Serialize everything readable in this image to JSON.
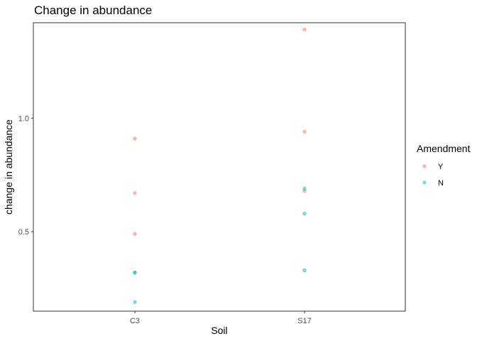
{
  "chart_data": {
    "type": "scatter",
    "title": "Change in abundance",
    "xlabel": "Soil",
    "ylabel": "change in abundance",
    "categories": [
      "C3",
      "S17"
    ],
    "ylim": [
      0.15,
      1.42
    ],
    "yticks": [
      0.5,
      1.0
    ],
    "ytick_labels": [
      "0.5",
      "1.0"
    ],
    "grid": false,
    "legend_position": "right",
    "legend_title": "Amendment",
    "series": [
      {
        "name": "Y",
        "color": "#F8766D",
        "points": [
          {
            "x": "C3",
            "y": 0.91
          },
          {
            "x": "C3",
            "y": 0.67
          },
          {
            "x": "C3",
            "y": 0.49
          },
          {
            "x": "S17",
            "y": 1.39
          },
          {
            "x": "S17",
            "y": 0.94
          },
          {
            "x": "S17",
            "y": 0.68
          }
        ]
      },
      {
        "name": "N",
        "color": "#00BFC4",
        "points": [
          {
            "x": "C3",
            "y": 0.32
          },
          {
            "x": "C3",
            "y": 0.32
          },
          {
            "x": "C3",
            "y": 0.19
          },
          {
            "x": "S17",
            "y": 0.69
          },
          {
            "x": "S17",
            "y": 0.58
          },
          {
            "x": "S17",
            "y": 0.33
          }
        ]
      }
    ]
  }
}
